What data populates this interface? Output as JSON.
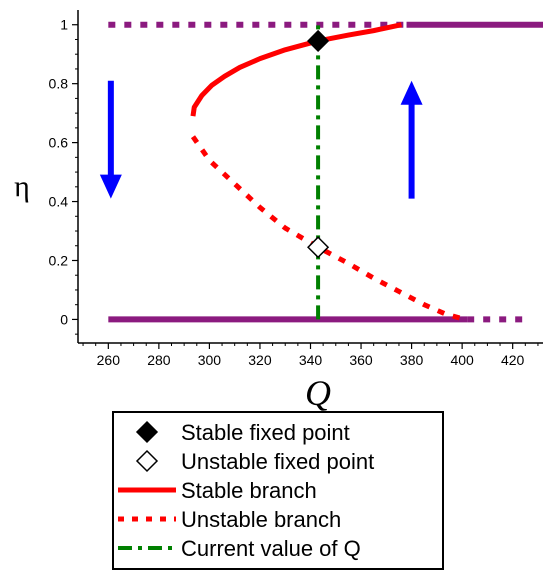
{
  "chart_data": {
    "type": "line",
    "xlabel": "Q",
    "ylabel": "η",
    "xlim": [
      248,
      432
    ],
    "ylim": [
      -0.08,
      1.05
    ],
    "x_ticks": [
      260,
      280,
      300,
      320,
      340,
      360,
      380,
      400,
      420
    ],
    "y_ticks": [
      0,
      0.2,
      0.4,
      0.6,
      0.8,
      1
    ],
    "y_tick_labels": [
      "0",
      "0.2",
      "0.4",
      "0.6",
      "0.8",
      "1"
    ],
    "grid": false,
    "legend_position": "bottom",
    "series": [
      {
        "name": "Stable branch",
        "style": "solid",
        "color": "#ff0000",
        "x": [
          293.5,
          294,
          297,
          301,
          306,
          312,
          320,
          330,
          343,
          355,
          365,
          376
        ],
        "y": [
          0.69,
          0.72,
          0.76,
          0.795,
          0.825,
          0.855,
          0.885,
          0.915,
          0.945,
          0.965,
          0.98,
          1.0
        ]
      },
      {
        "name": "Unstable branch",
        "style": "dotted",
        "color": "#ff0000",
        "x": [
          293.5,
          300,
          310,
          320,
          330,
          343,
          355,
          365,
          375,
          385,
          393,
          401
        ],
        "y": [
          0.62,
          0.54,
          0.46,
          0.38,
          0.31,
          0.245,
          0.19,
          0.14,
          0.095,
          0.05,
          0.02,
          0.0
        ]
      },
      {
        "name": "Current value of Q",
        "style": "dashdot",
        "color": "#008000",
        "x": [
          343,
          343
        ],
        "y": [
          0.0,
          1.0
        ]
      }
    ],
    "fixed_branches": [
      {
        "style": "dotted",
        "color": "#8b1a7f",
        "x": [
          260,
          378
        ],
        "y": [
          1,
          1
        ]
      },
      {
        "style": "solid",
        "color": "#8b1a7f",
        "x": [
          378,
          432
        ],
        "y": [
          1,
          1
        ]
      },
      {
        "style": "solid",
        "color": "#8b1a7f",
        "x": [
          260,
          402
        ],
        "y": [
          0,
          0
        ]
      },
      {
        "style": "dotted",
        "color": "#8b1a7f",
        "x": [
          402,
          425
        ],
        "y": [
          0,
          0
        ]
      }
    ],
    "points": [
      {
        "name": "Stable fixed point",
        "marker": "filled-diamond",
        "x": 343,
        "y": 0.945
      },
      {
        "name": "Unstable fixed point",
        "marker": "open-diamond",
        "x": 343,
        "y": 0.245
      }
    ],
    "arrows": [
      {
        "direction": "down",
        "color": "#0000ff",
        "x": 261,
        "y_from": 0.81,
        "y_to": 0.41
      },
      {
        "direction": "up",
        "color": "#0000ff",
        "x": 380,
        "y_from": 0.41,
        "y_to": 0.81
      }
    ]
  },
  "legend": [
    {
      "label": "Stable fixed point",
      "marker": "filled-diamond"
    },
    {
      "label": "Unstable fixed point",
      "marker": "open-diamond"
    },
    {
      "label": "Stable branch",
      "marker": "solid-red"
    },
    {
      "label": "Unstable branch",
      "marker": "dotted-red"
    },
    {
      "label": "Current value of Q",
      "marker": "dashdot-green"
    }
  ],
  "colors": {
    "stable": "#ff0000",
    "current": "#008000",
    "fixed": "#8b1a7f",
    "arrow": "#0000ff"
  }
}
